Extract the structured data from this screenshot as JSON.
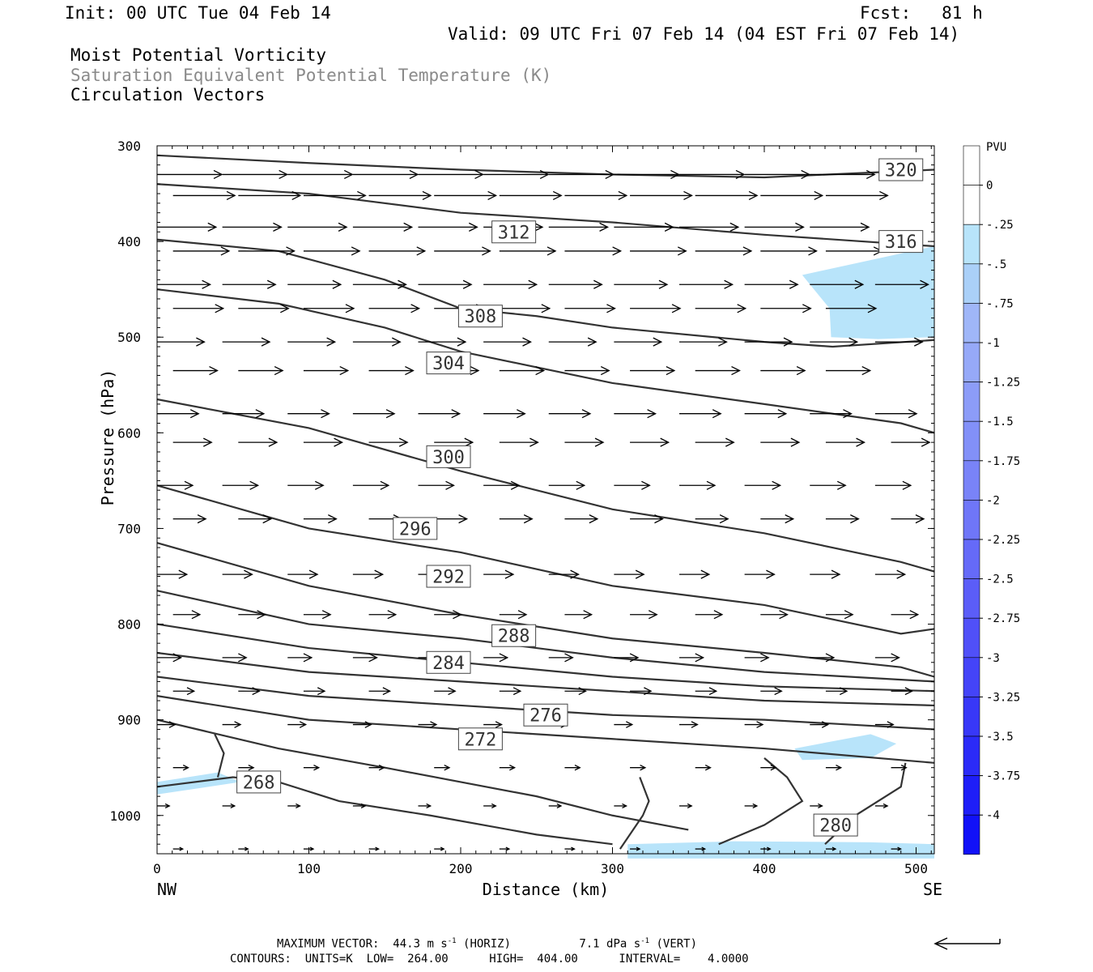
{
  "header": {
    "init": "Init: 00 UTC Tue 04 Feb 14",
    "fcst": "Fcst:   81 h",
    "valid": "Valid: 09 UTC Fri 07 Feb 14 (04 EST Fri 07 Feb 14)",
    "field1": "Moist Potential Vorticity",
    "field2": "Saturation Equivalent Potential Temperature (K)",
    "field3": "Circulation Vectors"
  },
  "footer": {
    "max_vector_label": "MAXIMUM VECTOR:",
    "max_horiz": "44.3 m s",
    "horiz_unit": "(HORIZ)",
    "max_vert": "7.1 dPa s",
    "vert_unit": "(VERT)",
    "exp": "-1",
    "contours": "CONTOURS:  UNITS=K  LOW=  264.00      HIGH=  404.00      INTERVAL=    4.0000"
  },
  "chart_data": {
    "type": "line",
    "xlabel": "Distance (km)",
    "ylabel": "Pressure (hPa)",
    "xlim": [
      0,
      512
    ],
    "ylim": [
      1040,
      300
    ],
    "xticks": [
      0,
      100,
      200,
      300,
      400,
      500
    ],
    "yticks": [
      300,
      400,
      500,
      600,
      700,
      800,
      900,
      1000
    ],
    "x_end_labels": {
      "left": "NW",
      "right": "SE"
    },
    "contour_color": "#333333",
    "contours": [
      {
        "label": "320",
        "label_at": [
          490,
          325
        ],
        "points": [
          [
            0,
            310
          ],
          [
            100,
            318
          ],
          [
            200,
            325
          ],
          [
            300,
            330
          ],
          [
            400,
            333
          ],
          [
            512,
            325
          ]
        ]
      },
      {
        "label": "316",
        "label_at": [
          490,
          400
        ],
        "points": [
          [
            0,
            340
          ],
          [
            100,
            350
          ],
          [
            200,
            370
          ],
          [
            300,
            380
          ],
          [
            400,
            393
          ],
          [
            512,
            405
          ]
        ]
      },
      {
        "label": "312",
        "label_at": [
          235,
          390
        ],
        "points": [
          [
            0,
            398
          ],
          [
            80,
            410
          ],
          [
            150,
            440
          ],
          [
            200,
            470
          ],
          [
            250,
            478
          ],
          [
            300,
            490
          ],
          [
            400,
            505
          ],
          [
            445,
            510
          ],
          [
            512,
            503
          ]
        ]
      },
      {
        "label": "308",
        "label_at": [
          213,
          478
        ],
        "points": [
          [
            0,
            450
          ],
          [
            80,
            465
          ],
          [
            150,
            490
          ],
          [
            200,
            515
          ],
          [
            300,
            548
          ],
          [
            400,
            570
          ],
          [
            490,
            590
          ],
          [
            512,
            600
          ]
        ]
      },
      {
        "label": "304",
        "label_at": [
          192,
          527
        ],
        "points": [
          [
            0,
            565
          ],
          [
            100,
            595
          ],
          [
            200,
            640
          ],
          [
            300,
            680
          ],
          [
            400,
            705
          ],
          [
            490,
            735
          ],
          [
            512,
            745
          ]
        ]
      },
      {
        "label": "300",
        "label_at": [
          192,
          625
        ],
        "points": [
          [
            0,
            655
          ],
          [
            100,
            700
          ],
          [
            200,
            725
          ],
          [
            300,
            760
          ],
          [
            400,
            780
          ],
          [
            490,
            810
          ],
          [
            512,
            805
          ]
        ]
      },
      {
        "label": "296",
        "label_at": [
          170,
          700
        ],
        "points": [
          [
            0,
            715
          ],
          [
            100,
            760
          ],
          [
            200,
            790
          ],
          [
            300,
            815
          ],
          [
            400,
            830
          ],
          [
            490,
            845
          ],
          [
            512,
            855
          ]
        ]
      },
      {
        "label": "292",
        "label_at": [
          192,
          750
        ],
        "points": [
          [
            0,
            765
          ],
          [
            100,
            800
          ],
          [
            200,
            815
          ],
          [
            300,
            835
          ],
          [
            400,
            850
          ],
          [
            512,
            860
          ]
        ]
      },
      {
        "label": "288",
        "label_at": [
          235,
          812
        ],
        "points": [
          [
            0,
            800
          ],
          [
            100,
            825
          ],
          [
            200,
            840
          ],
          [
            300,
            855
          ],
          [
            400,
            865
          ],
          [
            512,
            870
          ]
        ]
      },
      {
        "label": "284",
        "label_at": [
          192,
          840
        ],
        "points": [
          [
            0,
            830
          ],
          [
            100,
            850
          ],
          [
            200,
            860
          ],
          [
            300,
            870
          ],
          [
            400,
            880
          ],
          [
            512,
            885
          ]
        ]
      },
      {
        "label": "280",
        "label_at": [
          447,
          1010
        ],
        "points": [
          [
            0,
            855
          ],
          [
            100,
            875
          ],
          [
            200,
            885
          ],
          [
            300,
            895
          ],
          [
            400,
            900
          ],
          [
            512,
            910
          ]
        ]
      },
      {
        "label": "276",
        "label_at": [
          256,
          895
        ],
        "points": [
          [
            0,
            875
          ],
          [
            100,
            900
          ],
          [
            200,
            910
          ],
          [
            300,
            920
          ],
          [
            400,
            930
          ],
          [
            512,
            945
          ]
        ]
      },
      {
        "label": "272",
        "label_at": [
          213,
          920
        ],
        "points": [
          [
            0,
            900
          ],
          [
            80,
            930
          ],
          [
            150,
            950
          ],
          [
            200,
            965
          ],
          [
            250,
            980
          ],
          [
            300,
            1000
          ],
          [
            350,
            1015
          ]
        ]
      },
      {
        "label": "268",
        "label_at": [
          67,
          965
        ],
        "points": [
          [
            0,
            970
          ],
          [
            50,
            960
          ],
          [
            80,
            965
          ],
          [
            120,
            985
          ],
          [
            180,
            1000
          ],
          [
            250,
            1020
          ],
          [
            300,
            1030
          ]
        ]
      }
    ],
    "pv_legend": {
      "unit": "PVU",
      "levels": [
        "0",
        "-.25",
        "-.5",
        "-.75",
        "-1",
        "-1.25",
        "-1.5",
        "-1.75",
        "-2",
        "-2.25",
        "-2.5",
        "-2.75",
        "-3",
        "-3.25",
        "-3.5",
        "-3.75",
        "-4"
      ],
      "colors": [
        "#ffffff",
        "#ffffff",
        "#b8e4fa",
        "#aad0f8",
        "#9fb6f8",
        "#96a9f8",
        "#8c9cf8",
        "#8290f8",
        "#7983f8",
        "#6f76f8",
        "#656af8",
        "#5b5df8",
        "#5050f8",
        "#4444f8",
        "#3838f8",
        "#2b2bf8",
        "#1e1ef8",
        "#1111f8"
      ]
    },
    "pv_fill_color": "#b8e4fa"
  }
}
